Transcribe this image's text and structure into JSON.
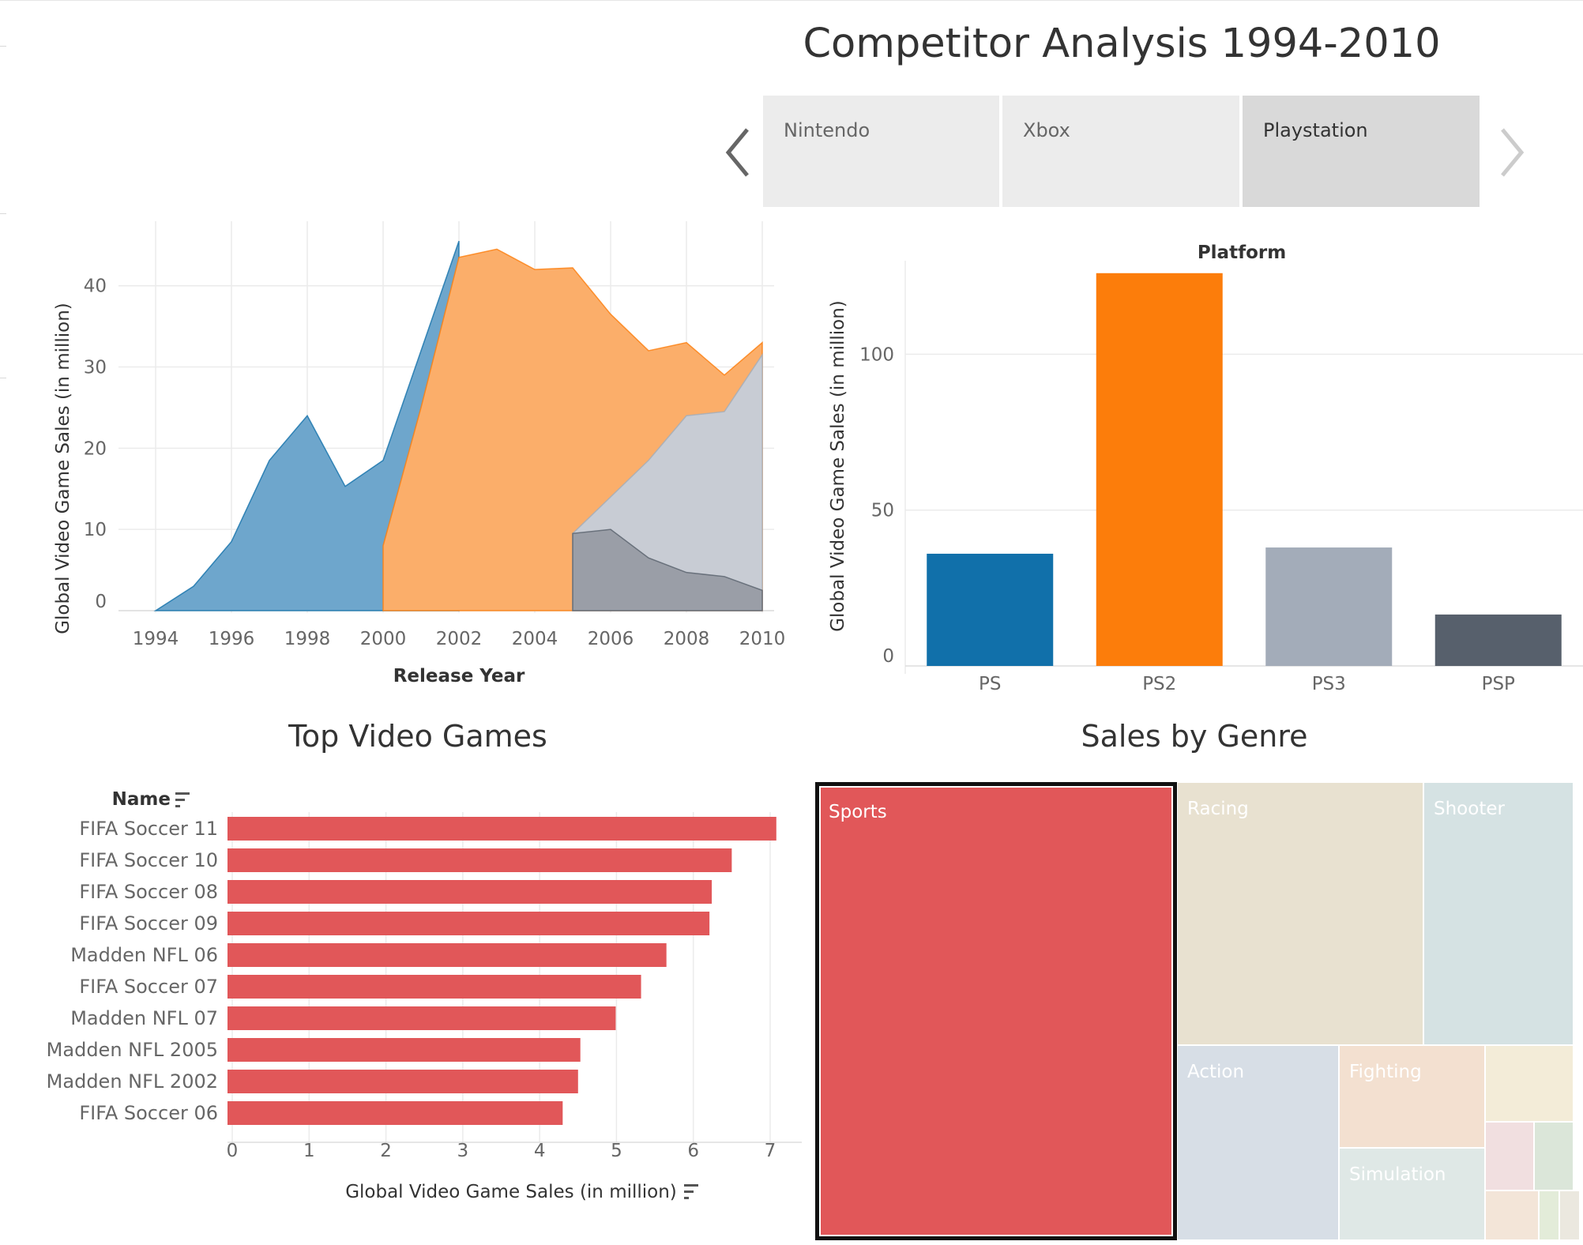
{
  "title": "Competitor Analysis 1994-2010",
  "tabs": [
    {
      "label": "Nintendo",
      "selected": false
    },
    {
      "label": "Xbox",
      "selected": false
    },
    {
      "label": "Playstation",
      "selected": true
    }
  ],
  "icons": {
    "prev": "chevron-left-icon",
    "next": "chevron-right-icon",
    "sort": "sort-descending-icon"
  },
  "colors": {
    "ps": "#1170aa",
    "ps2": "#fc7d0b",
    "ps3": "#a3acb9",
    "psp": "#57606c",
    "games": "#e15759"
  },
  "chart_data": [
    {
      "type": "area",
      "xlabel": "Release Year",
      "ylabel": "Global Video Game Sales (in million)",
      "x_ticks": [
        "1994",
        "1996",
        "1998",
        "2000",
        "2002",
        "2004",
        "2006",
        "2008",
        "2010"
      ],
      "y_ticks": [
        "0",
        "10",
        "20",
        "30",
        "40"
      ],
      "xlim": [
        1994,
        2010
      ],
      "ylim": [
        0,
        46
      ],
      "series": [
        {
          "color": "#1170aa",
          "fill": "#6ea6cc",
          "x": [
            1994,
            1995,
            1996,
            1997,
            1998,
            1999,
            2000,
            2001,
            2002
          ],
          "y": [
            0,
            3,
            8.5,
            18.5,
            24,
            15.3,
            18.5,
            32,
            45.5
          ]
        },
        {
          "color": "#fc7d0b",
          "fill": "#fbae6a",
          "x": [
            2000,
            2001,
            2002,
            2003,
            2004,
            2005,
            2006,
            2007,
            2008,
            2009,
            2010
          ],
          "y": [
            8,
            25,
            43.5,
            44.5,
            42,
            42.2,
            36.5,
            32,
            33,
            29,
            33
          ]
        },
        {
          "color": "#a3acb9",
          "fill": "#c8ccd4",
          "x": [
            2005,
            2006,
            2007,
            2008,
            2009,
            2010
          ],
          "y": [
            9.5,
            14,
            18.5,
            24,
            24.5,
            31.5
          ]
        },
        {
          "color": "#57606c",
          "fill": "#9a9ea7",
          "x": [
            2005,
            2006,
            2007,
            2008,
            2009,
            2010
          ],
          "y": [
            9.5,
            10,
            6.5,
            4.7,
            4.2,
            2.5
          ]
        }
      ]
    },
    {
      "type": "bar",
      "title": "Platform",
      "ylabel": "Global Video Game Sales (in million)",
      "categories": [
        "PS",
        "PS2",
        "PS3",
        "PSP"
      ],
      "values": [
        36,
        126,
        38,
        16.5
      ],
      "colors": [
        "#1170aa",
        "#fc7d0b",
        "#a3acb9",
        "#57606c"
      ],
      "y_ticks": [
        "0",
        "50",
        "100"
      ],
      "ylim": [
        0,
        130
      ]
    },
    {
      "type": "bar",
      "orientation": "horizontal",
      "title": "Top Video Games",
      "category_header": "Name",
      "xlabel": "Global Video Game Sales (in million)",
      "categories": [
        "FIFA Soccer 11",
        "FIFA Soccer 10",
        "FIFA Soccer 08",
        "FIFA Soccer 09",
        "Madden NFL 06",
        "FIFA Soccer 07",
        "Madden NFL 07",
        "Madden NFL 2005",
        "Madden NFL 2002",
        "FIFA Soccer 06"
      ],
      "values": [
        7.08,
        6.5,
        6.24,
        6.21,
        5.65,
        5.32,
        4.99,
        4.53,
        4.5,
        4.3
      ],
      "x_ticks": [
        "0",
        "1",
        "2",
        "3",
        "4",
        "5",
        "6",
        "7"
      ],
      "xlim": [
        0,
        7
      ]
    },
    {
      "type": "treemap",
      "title": "Sales by Genre",
      "cells": [
        {
          "label": "Sports",
          "color": "#e15759",
          "highlighted": true
        },
        {
          "label": "Racing",
          "color": "#e8e1d0"
        },
        {
          "label": "Shooter",
          "color": "#d5e2e3"
        },
        {
          "label": "Action",
          "color": "#d7dee6"
        },
        {
          "label": "Fighting",
          "color": "#f3e0d0"
        },
        {
          "label": "Simulation",
          "color": "#dfe8e6"
        },
        {
          "label": "",
          "color": "#f3ecd8"
        },
        {
          "label": "",
          "color": "#f1dfe0"
        },
        {
          "label": "",
          "color": "#dbe6d9"
        },
        {
          "label": "",
          "color": "#f3e5d8"
        },
        {
          "label": "",
          "color": "#e3ecd9"
        },
        {
          "label": "",
          "color": "#ebe8df"
        }
      ]
    }
  ]
}
